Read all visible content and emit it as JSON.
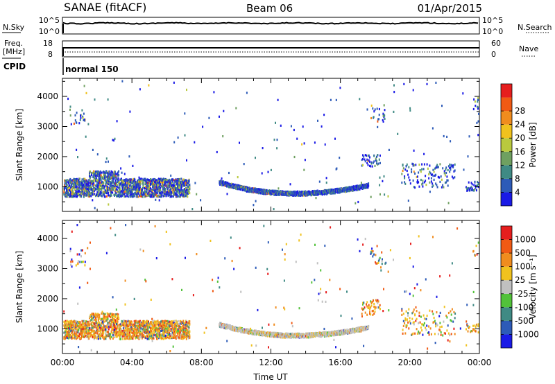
{
  "header": {
    "title": "SANAE (fitACF)",
    "beam": "Beam 06",
    "date": "01/Apr/2015"
  },
  "top_panels": {
    "nsky": {
      "left_label": "N.Sky",
      "left_ticks": [
        "10^5",
        "10^0"
      ],
      "right_label": "N.Search",
      "right_ticks": [
        "10^5",
        "10^0"
      ]
    },
    "freq": {
      "left_label_1": "Freq.",
      "left_label_2": "[MHz]",
      "left_ticks": [
        "18",
        "8"
      ],
      "right_label": "Nave",
      "right_ticks": [
        "60",
        "0"
      ]
    },
    "cpid": {
      "label": "CPID",
      "value": "normal 150"
    }
  },
  "chart_data": [
    {
      "type": "heatmap",
      "name": "power",
      "ylabel": "Slant Range [km]",
      "xlabel": "",
      "x_range_hours": [
        0,
        24
      ],
      "ylim": [
        180,
        4600
      ],
      "yticks": [
        "1000",
        "2000",
        "3000",
        "4000"
      ],
      "colorbar": {
        "label": "Power [dB]",
        "range": [
          0,
          32
        ],
        "ticks": [
          "4",
          "8",
          "12",
          "16",
          "20",
          "24",
          "28"
        ],
        "colors": [
          "#1a1ae6",
          "#2d5bb8",
          "#3f8a84",
          "#6fa060",
          "#b9c93e",
          "#f0c21e",
          "#f08c1e",
          "#f05a14",
          "#e61e1e"
        ]
      },
      "features": [
        {
          "desc": "dense band",
          "t_start": 0.05,
          "t_end": 7.3,
          "range_km": [
            700,
            1300
          ]
        },
        {
          "desc": "arc",
          "t_start": 9.0,
          "t_end": 17.6,
          "range_km_start": 1150,
          "range_km_min": 780,
          "range_km_end": 1050
        },
        {
          "desc": "patch",
          "t_start": 17.2,
          "t_end": 18.3,
          "range_km": [
            1700,
            2100
          ]
        },
        {
          "desc": "patch",
          "t_start": 19.5,
          "t_end": 22.6,
          "range_km": [
            1000,
            1800
          ]
        },
        {
          "desc": "patch",
          "t_start": 23.2,
          "t_end": 23.95,
          "range_km": [
            900,
            1200
          ]
        }
      ]
    },
    {
      "type": "heatmap",
      "name": "velocity",
      "ylabel": "Slant Range [km]",
      "xlabel": "Time UT",
      "x_range_hours": [
        0,
        24
      ],
      "xticks": [
        "00:00",
        "04:00",
        "08:00",
        "12:00",
        "16:00",
        "20:00",
        "00:00"
      ],
      "ylim": [
        180,
        4600
      ],
      "yticks": [
        "1000",
        "2000",
        "3000",
        "4000"
      ],
      "colorbar": {
        "label": "Velocity [m s⁻¹]",
        "ticks": [
          "1000",
          "500",
          "100",
          "25",
          "-25",
          "-100",
          "-500",
          "-1000"
        ],
        "colors": [
          "#1a1ae6",
          "#2d5bb8",
          "#3f8a84",
          "#52c23a",
          "#c0c0c0",
          "#f0c21e",
          "#f08c1e",
          "#f05a14",
          "#e61e1e"
        ]
      },
      "features": [
        {
          "desc": "dense band",
          "t_start": 0.05,
          "t_end": 7.3,
          "range_km": [
            700,
            1300
          ]
        },
        {
          "desc": "arc",
          "t_start": 9.0,
          "t_end": 17.6,
          "range_km_start": 1150,
          "range_km_min": 780,
          "range_km_end": 1050
        },
        {
          "desc": "patch",
          "t_start": 17.2,
          "t_end": 18.3,
          "range_km": [
            1500,
            2000
          ]
        },
        {
          "desc": "patch",
          "t_start": 19.5,
          "t_end": 22.6,
          "range_km": [
            800,
            1700
          ]
        },
        {
          "desc": "patch",
          "t_start": 23.2,
          "t_end": 23.95,
          "range_km": [
            900,
            1200
          ]
        }
      ]
    }
  ]
}
